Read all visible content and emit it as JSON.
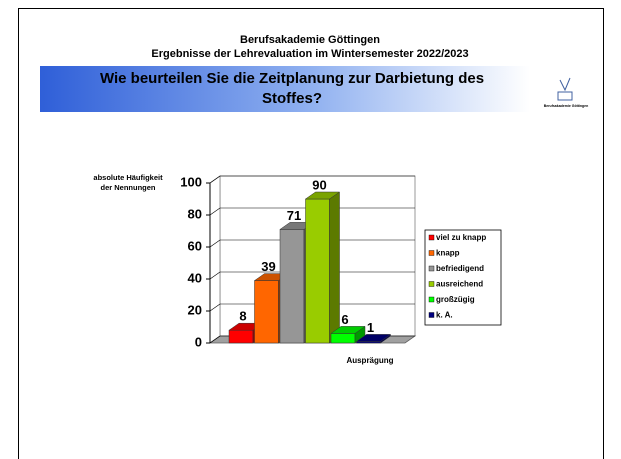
{
  "header": {
    "institution": "Berufsakademie Göttingen",
    "subtitle": "Ergebnisse der Lehrevaluation im Wintersemester 2022/2023",
    "logo_text": "Berufsakademie Göttingen"
  },
  "chart_data": {
    "type": "bar3d",
    "title": [
      "Wie beurteilen Sie die Zeitplanung zur Darbietung des",
      "Stoffes?"
    ],
    "y_label": [
      "absolute Häufigkeit",
      "der Nennungen"
    ],
    "x_label": "Ausprägung",
    "ylim": [
      0,
      100
    ],
    "yticks": [
      0,
      20,
      40,
      60,
      80,
      100
    ],
    "grid": true,
    "legend": "right",
    "series": [
      {
        "name": "viel zu knapp",
        "color": "#ff0000",
        "values": [
          8
        ]
      },
      {
        "name": "knapp",
        "color": "#ff6600",
        "values": [
          39
        ]
      },
      {
        "name": "befriedigend",
        "color": "#969696",
        "values": [
          71
        ]
      },
      {
        "name": "ausreichend",
        "color": "#99cc00",
        "values": [
          90
        ]
      },
      {
        "name": "großzügig",
        "color": "#00ff00",
        "values": [
          6
        ]
      },
      {
        "name": "k. A.",
        "color": "#000080",
        "values": [
          1
        ]
      }
    ]
  }
}
